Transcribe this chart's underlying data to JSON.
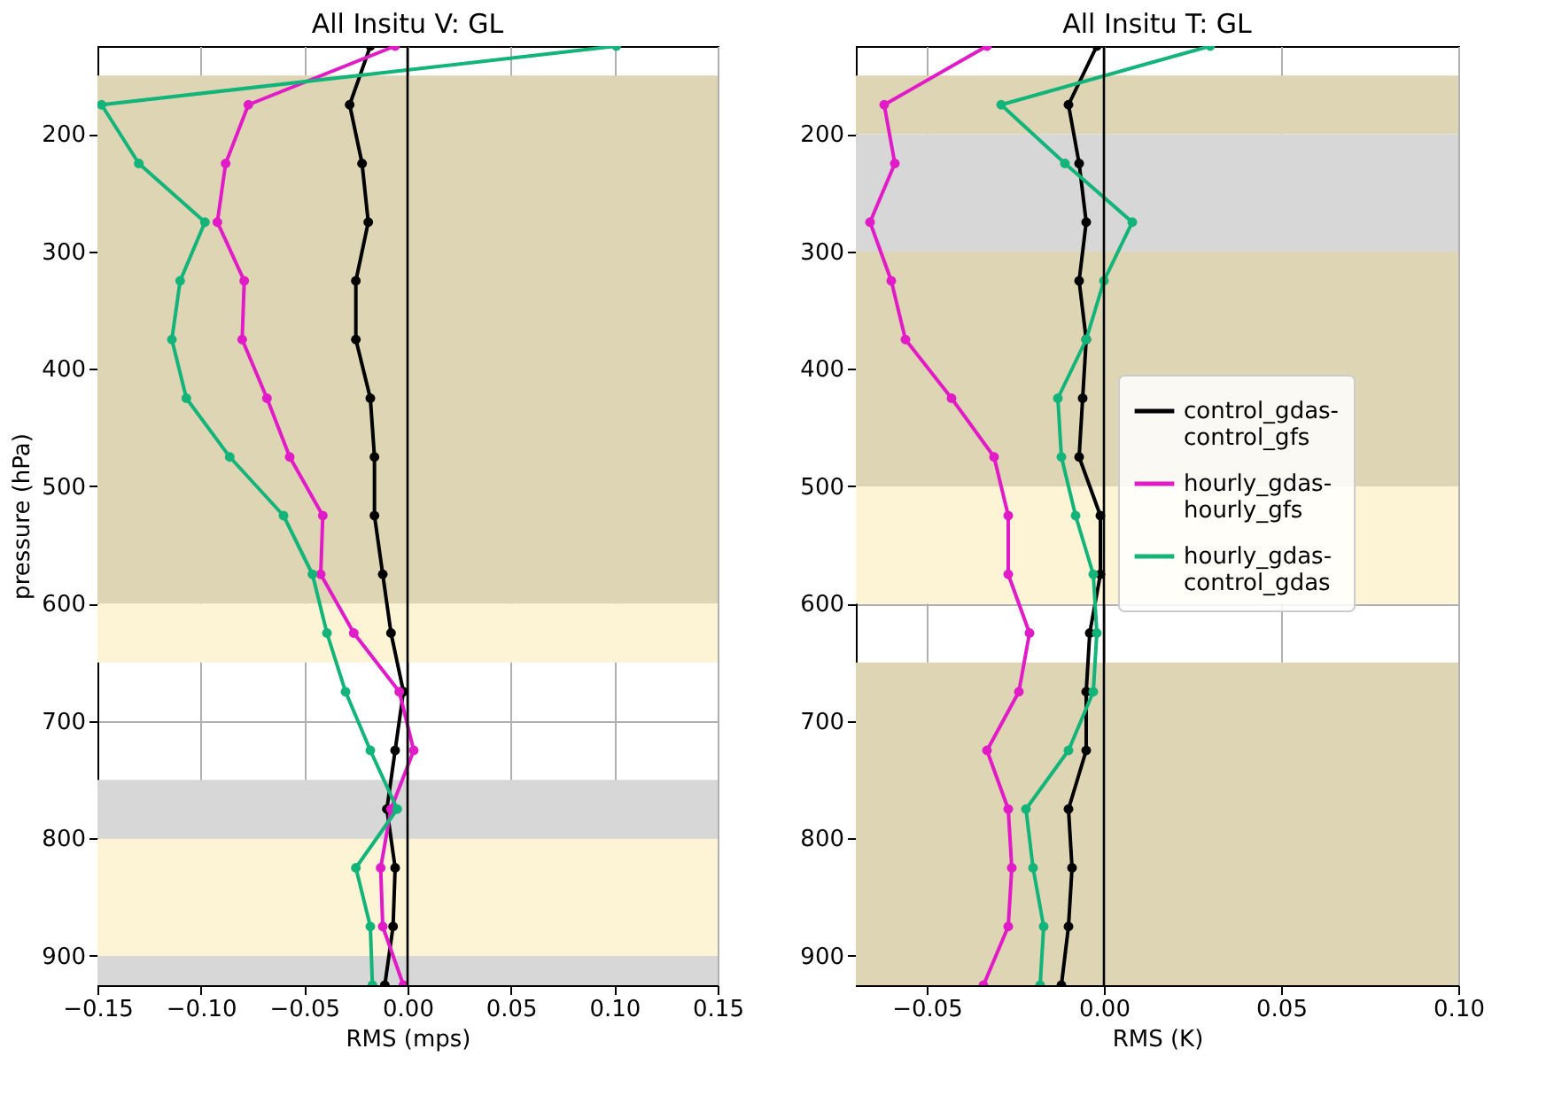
{
  "chart_data": [
    {
      "type": "line",
      "orientation": "horizontal",
      "title": "All Insitu V: GL",
      "xlabel": "RMS (mps)",
      "ylabel": "pressure (hPa)",
      "x": [
        125,
        175,
        225,
        275,
        325,
        375,
        425,
        475,
        525,
        575,
        625,
        675,
        725,
        775,
        825,
        875,
        925
      ],
      "series": [
        {
          "color": "#000000",
          "values": [
            -0.018,
            -0.028,
            -0.022,
            -0.019,
            -0.025,
            -0.025,
            -0.018,
            -0.016,
            -0.016,
            -0.012,
            -0.008,
            -0.002,
            -0.006,
            -0.01,
            -0.006,
            -0.007,
            -0.011
          ]
        },
        {
          "color": "#e11bc8",
          "values": [
            -0.006,
            -0.077,
            -0.088,
            -0.092,
            -0.079,
            -0.08,
            -0.068,
            -0.057,
            -0.041,
            -0.042,
            -0.026,
            -0.004,
            0.003,
            -0.008,
            -0.013,
            -0.012,
            -0.002
          ]
        },
        {
          "color": "#12b47a",
          "values": [
            0.101,
            -0.148,
            -0.13,
            -0.098,
            -0.11,
            -0.114,
            -0.107,
            -0.086,
            -0.06,
            -0.046,
            -0.039,
            -0.03,
            -0.018,
            -0.005,
            -0.025,
            -0.018,
            -0.017
          ]
        }
      ],
      "xlim": [
        -0.15,
        0.15
      ],
      "xticks": [
        {
          "value": -0.15,
          "label": "−0.15"
        },
        {
          "value": -0.1,
          "label": "−0.10"
        },
        {
          "value": -0.05,
          "label": "−0.05"
        },
        {
          "value": 0,
          "label": "0.00"
        },
        {
          "value": 0.05,
          "label": "0.05"
        },
        {
          "value": 0.1,
          "label": "0.10"
        },
        {
          "value": 0.15,
          "label": "0.15"
        }
      ],
      "ylim": [
        925,
        125
      ],
      "yticks": [
        200,
        300,
        400,
        500,
        600,
        700,
        800,
        900
      ],
      "ref_lines": [
        {
          "axis": "x",
          "value": 0,
          "color": "#000000"
        }
      ],
      "bands": [
        {
          "axis": "y",
          "from": 150,
          "to": 600,
          "color": "#ddd5b3"
        },
        {
          "axis": "y",
          "from": 600,
          "to": 650,
          "color": "#fdf4d6"
        },
        {
          "axis": "y",
          "from": 750,
          "to": 800,
          "color": "#d7d7d7"
        },
        {
          "axis": "y",
          "from": 800,
          "to": 900,
          "color": "#fdf4d6"
        },
        {
          "axis": "y",
          "from": 900,
          "to": 925,
          "color": "#d7d7d7"
        }
      ],
      "grid": true,
      "marker": "circle",
      "line_style": "solid"
    },
    {
      "type": "line",
      "orientation": "horizontal",
      "title": "All Insitu T: GL",
      "xlabel": "RMS (K)",
      "x": [
        125,
        175,
        225,
        275,
        325,
        375,
        425,
        475,
        525,
        575,
        625,
        675,
        725,
        775,
        825,
        875,
        925
      ],
      "series": [
        {
          "name": "control_gdas-control_gfs",
          "color": "#000000",
          "values": [
            -0.002,
            -0.01,
            -0.007,
            -0.005,
            -0.007,
            -0.005,
            -0.006,
            -0.007,
            -0.001,
            -0.001,
            -0.004,
            -0.005,
            -0.005,
            -0.01,
            -0.009,
            -0.01,
            -0.012
          ]
        },
        {
          "name": "hourly_gdas-hourly_gfs",
          "color": "#e11bc8",
          "values": [
            -0.033,
            -0.062,
            -0.059,
            -0.066,
            -0.06,
            -0.056,
            -0.043,
            -0.031,
            -0.027,
            -0.027,
            -0.021,
            -0.024,
            -0.033,
            -0.027,
            -0.026,
            -0.027,
            -0.034
          ]
        },
        {
          "name": "hourly_gdas-control_gdas",
          "color": "#12b47a",
          "values": [
            0.03,
            -0.029,
            -0.011,
            0.008,
            0.0,
            -0.005,
            -0.013,
            -0.012,
            -0.008,
            -0.003,
            -0.002,
            -0.003,
            -0.01,
            -0.022,
            -0.02,
            -0.017,
            -0.018
          ]
        }
      ],
      "xlim": [
        -0.07,
        0.1
      ],
      "xticks": [
        {
          "value": -0.05,
          "label": "−0.05"
        },
        {
          "value": 0,
          "label": "0.00"
        },
        {
          "value": 0.05,
          "label": "0.05"
        },
        {
          "value": 0.1,
          "label": "0.10"
        }
      ],
      "ylim": [
        925,
        125
      ],
      "yticks": [
        200,
        300,
        400,
        500,
        600,
        700,
        800,
        900
      ],
      "ref_lines": [
        {
          "axis": "x",
          "value": 0,
          "color": "#000000"
        }
      ],
      "bands": [
        {
          "axis": "y",
          "from": 150,
          "to": 200,
          "color": "#ddd5b3"
        },
        {
          "axis": "y",
          "from": 200,
          "to": 300,
          "color": "#d7d7d7"
        },
        {
          "axis": "y",
          "from": 300,
          "to": 500,
          "color": "#ddd5b3"
        },
        {
          "axis": "y",
          "from": 500,
          "to": 600,
          "color": "#fdf4d6"
        },
        {
          "axis": "y",
          "from": 650,
          "to": 925,
          "color": "#ddd5b3"
        }
      ],
      "grid": true,
      "legend": "right",
      "marker": "circle",
      "line_style": "solid"
    }
  ]
}
